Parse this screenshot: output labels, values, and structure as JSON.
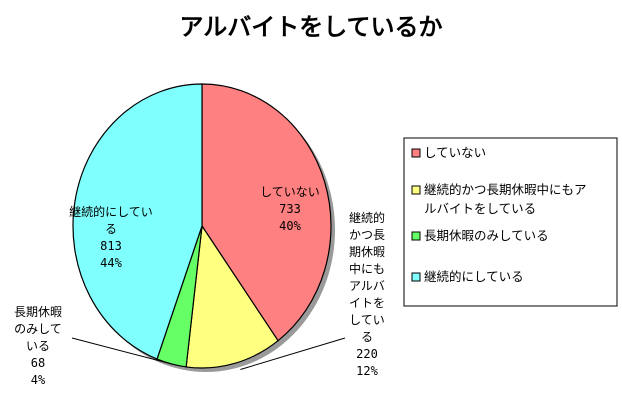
{
  "chart_data": {
    "type": "pie",
    "title": "アルバイトをしているか",
    "slices": [
      {
        "label": "していない",
        "value": 733,
        "percent": "40%",
        "color": "#FF8080",
        "label_lines": [
          "していない",
          "733",
          "40%"
        ]
      },
      {
        "label": "継続的かつ長期休暇中にもアルバイトをしている",
        "value": 220,
        "percent": "12%",
        "color": "#FFFF80",
        "label_lines": [
          "継続的",
          "かつ長",
          "期休暇",
          "中にも",
          "アルバ",
          "イトを",
          "してい",
          "る",
          "220",
          "12%"
        ]
      },
      {
        "label": "長期休暇のみしている",
        "value": 68,
        "percent": "4%",
        "color": "#66FF66",
        "label_lines": [
          "長期休暇",
          "のみして",
          "いる",
          "68",
          "4%"
        ]
      },
      {
        "label": "継続的にしている",
        "value": 813,
        "percent": "44%",
        "color": "#80FFFF",
        "label_lines": [
          "継続的にしてい",
          "る",
          "813",
          "44%"
        ]
      }
    ],
    "legend": {
      "placement": "right",
      "entries": [
        {
          "lines": [
            "していない"
          ]
        },
        {
          "lines": [
            "継続的かつ長期休暇中にもア",
            "ルバイトをしている"
          ]
        },
        {
          "lines": [
            "長期休暇のみしている"
          ]
        },
        {
          "lines": [
            "継続的にしている"
          ]
        }
      ]
    }
  }
}
